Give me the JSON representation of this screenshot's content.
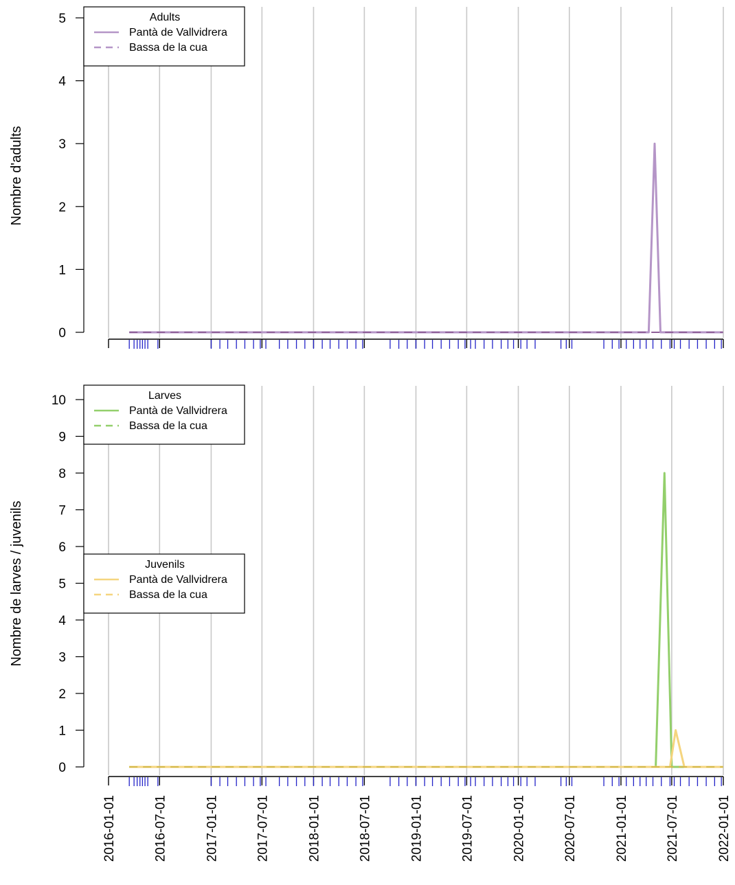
{
  "colors": {
    "adults": "#b595c7",
    "adults_dark": "#8e5f98",
    "larves": "#93cf6b",
    "juvenils": "#f5d57f",
    "juvenils_line": "#d4b84a",
    "grid": "#c8c8c8",
    "rug": "#2323c8"
  },
  "chart_data": [
    {
      "type": "line",
      "name": "adults-panel",
      "ylabel": "Nombre d'adults",
      "ylim": [
        0,
        5
      ],
      "yticks": [
        0,
        1,
        2,
        3,
        4,
        5
      ],
      "xlim": [
        "2016-01-01",
        "2022-01-01"
      ],
      "legends": [
        {
          "title": "Adults",
          "placement": "top-left",
          "entries": [
            {
              "label": "Pantà de Vallvidrera",
              "dash": "solid",
              "color": "#b595c7"
            },
            {
              "label": "Bassa de la cua",
              "dash": "dashed",
              "color": "#b595c7"
            }
          ]
        }
      ],
      "series": [
        {
          "name": "Pantà de Vallvidrera",
          "color": "#b595c7",
          "dash": "solid",
          "points": [
            [
              "2016-03-15",
              0
            ],
            [
              "2021-04-10",
              0
            ],
            [
              "2021-05-01",
              3
            ],
            [
              "2021-05-22",
              0
            ],
            [
              "2021-12-31",
              0
            ]
          ]
        },
        {
          "name": "Bassa de la cua",
          "color": "#8e5f98",
          "dash": "dashed",
          "points": [
            [
              "2016-03-15",
              0
            ],
            [
              "2021-12-31",
              0
            ]
          ]
        }
      ]
    },
    {
      "type": "line",
      "name": "larves-juvenils-panel",
      "ylabel": "Nombre de larves / juvenils",
      "ylim": [
        0,
        10
      ],
      "yticks": [
        0,
        1,
        2,
        3,
        4,
        5,
        6,
        7,
        8,
        9,
        10
      ],
      "xlim": [
        "2016-01-01",
        "2022-01-01"
      ],
      "legends": [
        {
          "title": "Larves",
          "placement": "top-left",
          "entries": [
            {
              "label": "Pantà de Vallvidrera",
              "dash": "solid",
              "color": "#93cf6b"
            },
            {
              "label": "Bassa de la cua",
              "dash": "dashed",
              "color": "#93cf6b"
            }
          ]
        },
        {
          "title": "Juvenils",
          "placement": "middle-left",
          "entries": [
            {
              "label": "Pantà de Vallvidrera",
              "dash": "solid",
              "color": "#f5d57f"
            },
            {
              "label": "Bassa de la cua",
              "dash": "dashed",
              "color": "#f5d57f"
            }
          ]
        }
      ],
      "series": [
        {
          "name": "Larves Pantà de Vallvidrera",
          "color": "#93cf6b",
          "dash": "solid",
          "points": [
            [
              "2016-03-15",
              0
            ],
            [
              "2021-05-05",
              0
            ],
            [
              "2021-06-05",
              8
            ],
            [
              "2021-07-01",
              0
            ],
            [
              "2021-12-31",
              0
            ]
          ]
        },
        {
          "name": "Larves Bassa de la cua",
          "color": "#93cf6b",
          "dash": "dashed",
          "points": [
            [
              "2016-03-15",
              0
            ],
            [
              "2021-12-31",
              0
            ]
          ]
        },
        {
          "name": "Juvenils Pantà de Vallvidrera",
          "color": "#f5d57f",
          "dash": "solid",
          "points": [
            [
              "2016-03-15",
              0
            ],
            [
              "2021-06-25",
              0
            ],
            [
              "2021-07-15",
              1
            ],
            [
              "2021-08-15",
              0
            ],
            [
              "2021-12-31",
              0
            ]
          ]
        },
        {
          "name": "Juvenils Bassa de la cua",
          "color": "#d4b84a",
          "dash": "dashed",
          "points": [
            [
              "2016-03-15",
              0
            ],
            [
              "2021-12-31",
              0
            ]
          ]
        }
      ]
    }
  ],
  "x_axis": {
    "tick_labels": [
      "2016-01-01",
      "2016-07-01",
      "2017-01-01",
      "2017-07-01",
      "2018-01-01",
      "2018-07-01",
      "2019-01-01",
      "2019-07-01",
      "2020-01-01",
      "2020-07-01",
      "2021-01-01",
      "2021-07-01",
      "2022-01-01"
    ]
  },
  "survey_dates": [
    "2016-03-15",
    "2016-04-01",
    "2016-04-12",
    "2016-04-22",
    "2016-05-01",
    "2016-05-10",
    "2016-05-20",
    "2016-06-25",
    "2017-01-01",
    "2017-02-01",
    "2017-03-01",
    "2017-04-01",
    "2017-05-01",
    "2017-06-01",
    "2017-06-25",
    "2017-07-15",
    "2017-09-01",
    "2017-10-01",
    "2017-11-01",
    "2017-12-01",
    "2018-01-01",
    "2018-02-01",
    "2018-03-01",
    "2018-04-01",
    "2018-05-01",
    "2018-06-01",
    "2018-06-25",
    "2018-10-01",
    "2018-11-01",
    "2018-12-01",
    "2019-01-01",
    "2019-02-01",
    "2019-03-01",
    "2019-04-01",
    "2019-05-01",
    "2019-06-01",
    "2019-06-25",
    "2019-07-15",
    "2019-08-01",
    "2019-09-01",
    "2019-10-01",
    "2019-11-01",
    "2019-11-25",
    "2019-12-15",
    "2020-01-10",
    "2020-02-01",
    "2020-03-01",
    "2020-06-01",
    "2020-06-20",
    "2020-07-10",
    "2020-11-01",
    "2020-12-01",
    "2020-12-25",
    "2021-01-20",
    "2021-02-15",
    "2021-03-10",
    "2021-04-01",
    "2021-04-25",
    "2021-05-25",
    "2021-06-25",
    "2021-07-10",
    "2021-08-01",
    "2021-09-01",
    "2021-10-01",
    "2021-11-01",
    "2021-12-01",
    "2021-12-25"
  ]
}
